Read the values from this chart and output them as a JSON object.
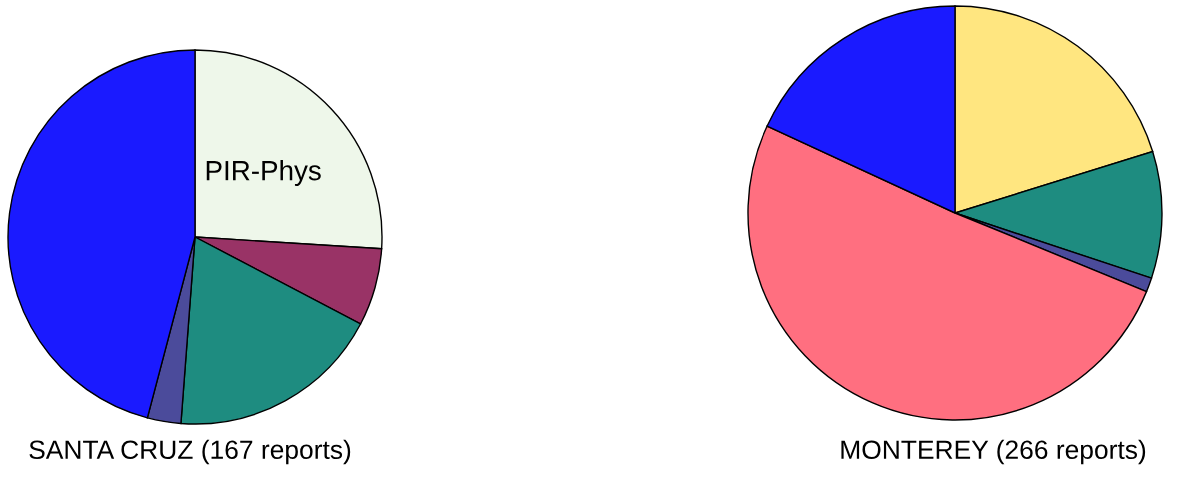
{
  "chart_data": [
    {
      "type": "pie",
      "title": "SANTA CRUZ (167 reports)",
      "categories": [
        "PIR-Phys",
        null,
        null,
        null,
        null
      ],
      "values": [
        26,
        6.7,
        18.5,
        2.9,
        45.9
      ],
      "colors": [
        "#eef7ea",
        "#993366",
        "#1e8c80",
        "#4b4b9b",
        "#1a1aff"
      ]
    },
    {
      "type": "pie",
      "title": "MONTEREY (266 reports)",
      "categories": [
        null,
        null,
        null,
        null,
        null
      ],
      "values": [
        20.2,
        9.9,
        1.1,
        50.7,
        18.1
      ],
      "colors": [
        "#ffe680",
        "#1e8c80",
        "#4b4b9b",
        "#ff6f80",
        "#1a1aff"
      ]
    }
  ]
}
